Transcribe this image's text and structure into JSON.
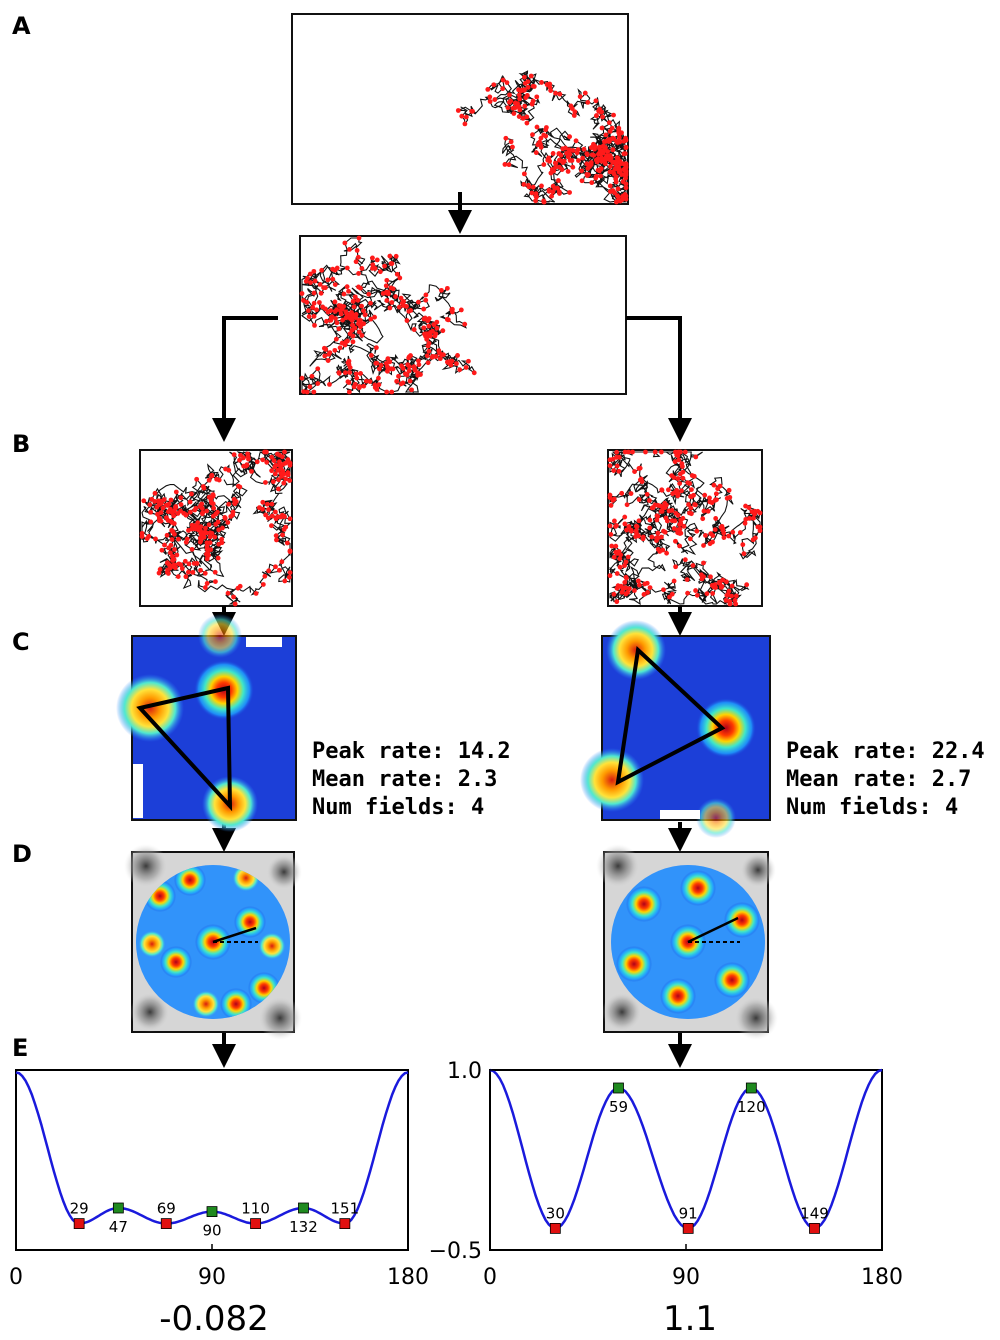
{
  "panel_labels": {
    "A": "A",
    "B": "B",
    "C": "C",
    "D": "D",
    "E": "E"
  },
  "colors": {
    "trajectory": "#111111",
    "spikes": "#ff1a1a",
    "curve": "#1a1adc",
    "max_marker": "#1f8a1f",
    "min_marker": "#e01010",
    "ratemap_bg": "#1c3fd8"
  },
  "stats": {
    "left": {
      "peak": "Peak rate: 14.2",
      "mean": "Mean rate: 2.3",
      "fields": "Num fields: 4"
    },
    "right": {
      "peak": "Peak rate: 22.4",
      "mean": "Mean rate: 2.7",
      "fields": "Num fields: 4"
    }
  },
  "scores": {
    "left": "-0.082",
    "right": "1.1"
  },
  "chart_data": [
    {
      "type": "line",
      "title": "",
      "x_ticks": [
        "0",
        "90",
        "180"
      ],
      "xlim": [
        0,
        180
      ],
      "ylim": [
        -0.5,
        1.0
      ],
      "y_ticks": [],
      "maxima": [
        {
          "x": 47,
          "y": -0.15
        },
        {
          "x": 90,
          "y": -0.18
        },
        {
          "x": 132,
          "y": -0.15
        }
      ],
      "minima": [
        {
          "x": 29,
          "y": -0.28
        },
        {
          "x": 69,
          "y": -0.28
        },
        {
          "x": 110,
          "y": -0.28
        },
        {
          "x": 151,
          "y": -0.28
        }
      ],
      "endpoints": [
        {
          "x": 0,
          "y": 0.98
        },
        {
          "x": 180,
          "y": 0.98
        }
      ],
      "labels": {
        "max": [
          "47",
          "90",
          "132"
        ],
        "min": [
          "29",
          "69",
          "110",
          "151"
        ]
      }
    },
    {
      "type": "line",
      "title": "",
      "x_ticks": [
        "0",
        "90",
        "180"
      ],
      "y_ticks": [
        "1.0",
        "−0.5"
      ],
      "xlim": [
        0,
        180
      ],
      "ylim": [
        -0.5,
        1.0
      ],
      "maxima": [
        {
          "x": 59,
          "y": 0.85
        },
        {
          "x": 120,
          "y": 0.85
        }
      ],
      "minima": [
        {
          "x": 30,
          "y": -0.32
        },
        {
          "x": 91,
          "y": -0.32
        },
        {
          "x": 149,
          "y": -0.32
        }
      ],
      "endpoints": [
        {
          "x": 0,
          "y": 1.0
        },
        {
          "x": 180,
          "y": 1.0
        }
      ],
      "labels": {
        "max": [
          "59",
          "120"
        ],
        "min": [
          "30",
          "91",
          "149"
        ]
      }
    }
  ]
}
